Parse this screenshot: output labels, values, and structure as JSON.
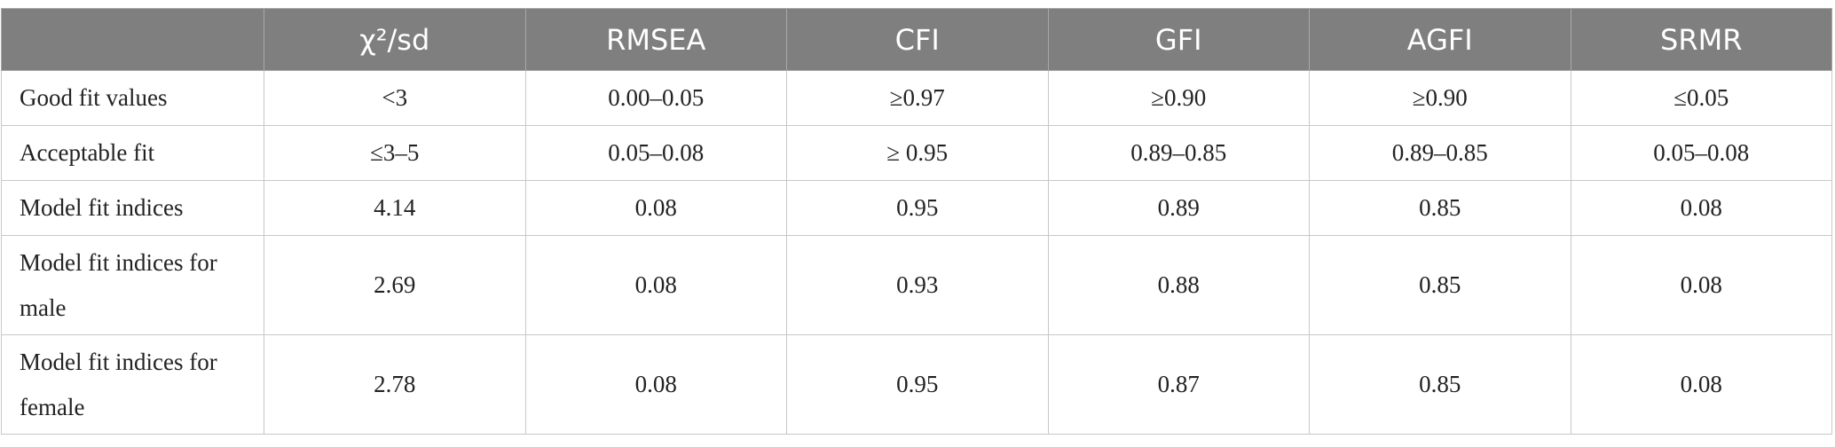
{
  "table": {
    "header": [
      "",
      "χ²/sd",
      "RMSEA",
      "CFI",
      "GFI",
      "AGFI",
      "SRMR"
    ],
    "rows": [
      [
        "Good fit values",
        "<3",
        "0.00–0.05",
        "≥0.97",
        "≥0.90",
        "≥0.90",
        "≤0.05"
      ],
      [
        "Acceptable fit",
        "≤3–5",
        "0.05–0.08",
        "≥ 0.95",
        "0.89–0.85",
        "0.89–0.85",
        "0.05–0.08"
      ],
      [
        "Model fit indices",
        "4.14",
        "0.08",
        "0.95",
        "0.89",
        "0.85",
        "0.08"
      ],
      [
        "Model fit indices for male",
        "2.69",
        "0.08",
        "0.93",
        "0.88",
        "0.85",
        "0.08"
      ],
      [
        "Model fit indices for female",
        "2.78",
        "0.08",
        "0.95",
        "0.87",
        "0.85",
        "0.08"
      ]
    ]
  }
}
